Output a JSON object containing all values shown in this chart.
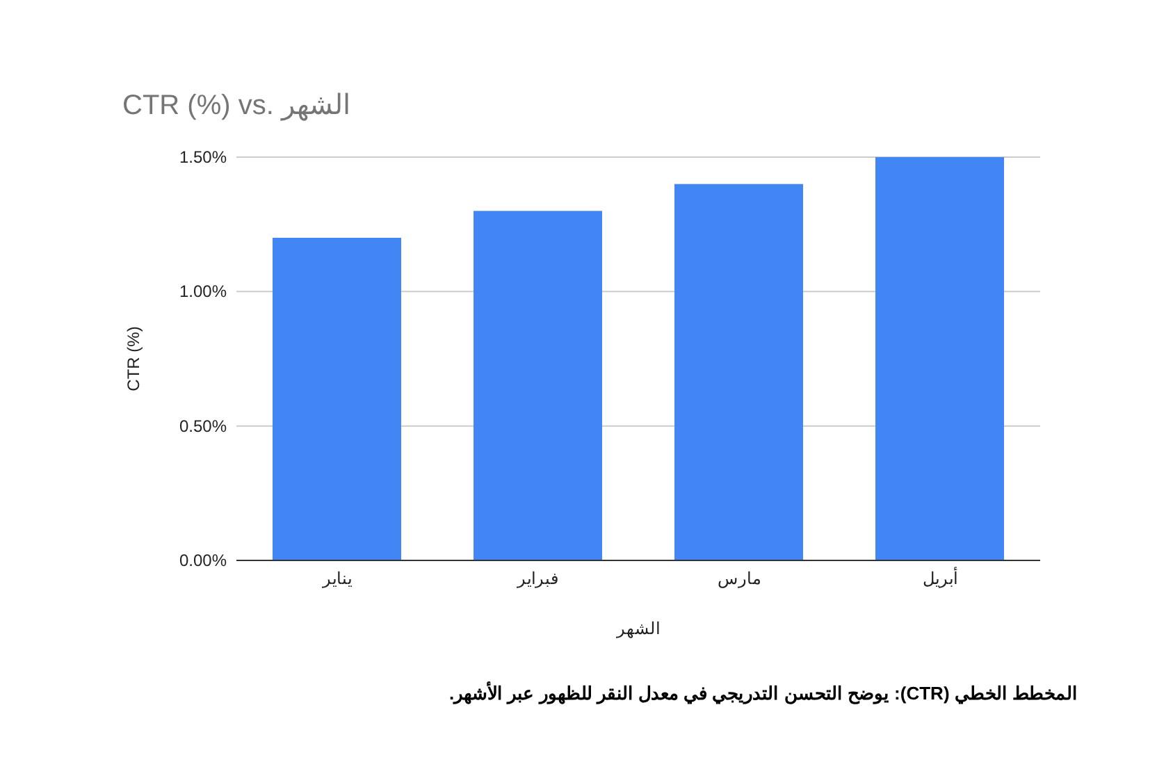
{
  "chart_data": {
    "type": "bar",
    "title": "CTR (%) vs. الشهر",
    "xlabel": "الشهر",
    "ylabel": "CTR (%)",
    "categories": [
      "يناير",
      "فبراير",
      "مارس",
      "أبريل"
    ],
    "values": [
      1.2,
      1.3,
      1.4,
      1.5
    ],
    "color": "#4285f4",
    "ylim": [
      0,
      1.5
    ],
    "yticks": [
      {
        "value": 0,
        "label": "0.00%"
      },
      {
        "value": 0.5,
        "label": "0.50%"
      },
      {
        "value": 1,
        "label": "1.00%"
      },
      {
        "value": 1.5,
        "label": "1.50%"
      }
    ],
    "grid": "y",
    "annotations": [
      "المخطط الخطي (CTR): يوضح التحسن التدريجي في معدل النقر للظهور عبر الأشهر."
    ]
  }
}
